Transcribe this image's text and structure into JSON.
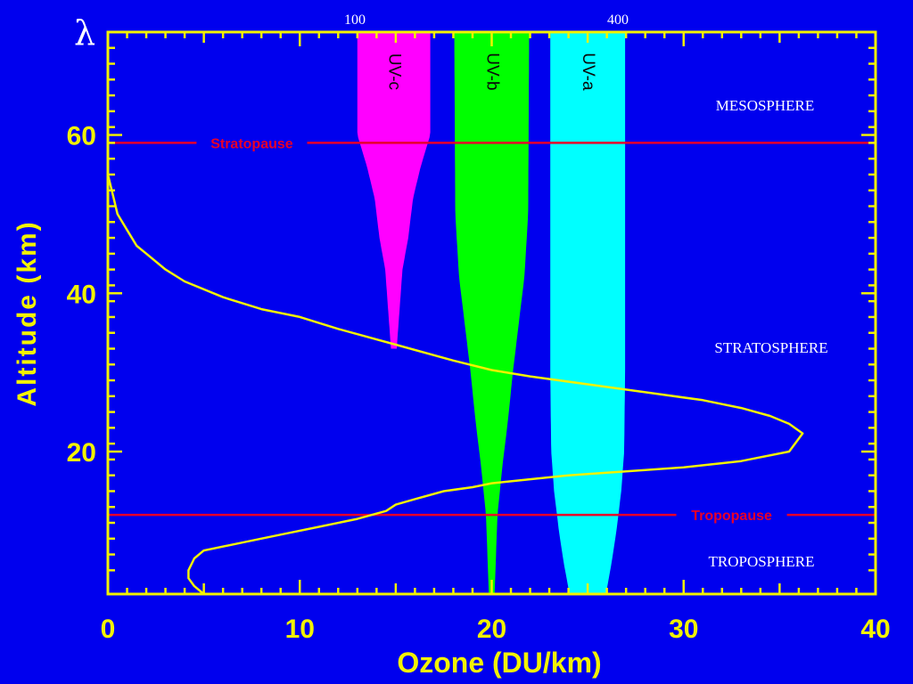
{
  "chart_data": {
    "type": "line",
    "xlabel": "Ozone (DU/km)",
    "ylabel": "Altitude (km)",
    "xlim": [
      0,
      40
    ],
    "ylim": [
      2,
      73
    ],
    "x_ticks": [
      0,
      10,
      20,
      30,
      40
    ],
    "y_ticks": [
      20,
      40,
      60
    ],
    "grid": false,
    "series": [
      {
        "x": [
          0,
          0.1,
          0.3,
          0.5,
          1,
          1.5,
          2,
          3,
          4,
          6,
          8,
          10,
          12,
          15,
          18,
          20,
          22,
          25,
          28,
          31,
          33,
          34.5,
          35.5,
          36.2,
          35.5,
          33,
          30,
          27,
          24,
          22,
          20,
          19,
          17.5,
          16,
          15,
          14.5,
          13,
          11,
          9,
          7,
          5,
          4.5,
          4.2,
          4.2,
          4.5,
          5
        ],
        "y": [
          55,
          54,
          52,
          50,
          48,
          46,
          45,
          43,
          41.5,
          39.5,
          38,
          37,
          35.5,
          33.5,
          31.5,
          30.3,
          29.5,
          28.5,
          27.5,
          26.5,
          25.5,
          24.5,
          23.5,
          22.3,
          20,
          18.8,
          18,
          17.5,
          17,
          16.5,
          16,
          15.5,
          15,
          14,
          13.3,
          12.5,
          11.5,
          10.5,
          9.5,
          8.5,
          7.5,
          6.5,
          5,
          4,
          3,
          2
        ]
      }
    ],
    "uv_bands": [
      {
        "label": "UV-c",
        "color": "#FF00FF",
        "center": 14.9,
        "y_bottom": 33,
        "y_top": 73,
        "half_width": [
          [
            33,
            0.15
          ],
          [
            38,
            0.3
          ],
          [
            43,
            0.45
          ],
          [
            47,
            0.75
          ],
          [
            52,
            1.0
          ],
          [
            56,
            1.4
          ],
          [
            60,
            1.9
          ],
          [
            65,
            1.9
          ],
          [
            73,
            1.9
          ]
        ]
      },
      {
        "label": "UV-b",
        "color": "#00FF00",
        "center": 20.0,
        "y_bottom": 2,
        "y_top": 73,
        "half_width": [
          [
            2,
            0.15
          ],
          [
            12,
            0.3
          ],
          [
            18,
            0.55
          ],
          [
            24,
            0.85
          ],
          [
            30,
            1.1
          ],
          [
            36,
            1.4
          ],
          [
            42,
            1.7
          ],
          [
            50,
            1.9
          ],
          [
            73,
            1.95
          ]
        ]
      },
      {
        "label": "UV-a",
        "color": "#00FFFF",
        "center": 25.0,
        "y_bottom": 2,
        "y_top": 73,
        "half_width": [
          [
            2,
            0.95
          ],
          [
            6,
            1.25
          ],
          [
            10,
            1.5
          ],
          [
            15,
            1.75
          ],
          [
            20,
            1.9
          ],
          [
            30,
            1.95
          ],
          [
            73,
            1.95
          ]
        ]
      }
    ],
    "reference_lines": [
      {
        "label": "Stratopause",
        "y": 59,
        "label_x": 7.5,
        "color": "#E8002A"
      },
      {
        "label": "Tropopause",
        "y": 12,
        "label_x": 32.5,
        "color": "#E8002A"
      }
    ]
  },
  "annotations": {
    "lambda": "λ",
    "wavelength_100": "100",
    "wavelength_400": "400",
    "mesosphere": "MESOSPHERE",
    "stratosphere": "STRATOSPHERE",
    "troposphere": "TROPOSPHERE"
  },
  "colors": {
    "background": "#0000EE",
    "frame": "#F2F200",
    "profile": "#F2F200",
    "axis_text": "#F2F200",
    "band_label": "#0A0A0A",
    "annotation": "#FFFFFF"
  }
}
